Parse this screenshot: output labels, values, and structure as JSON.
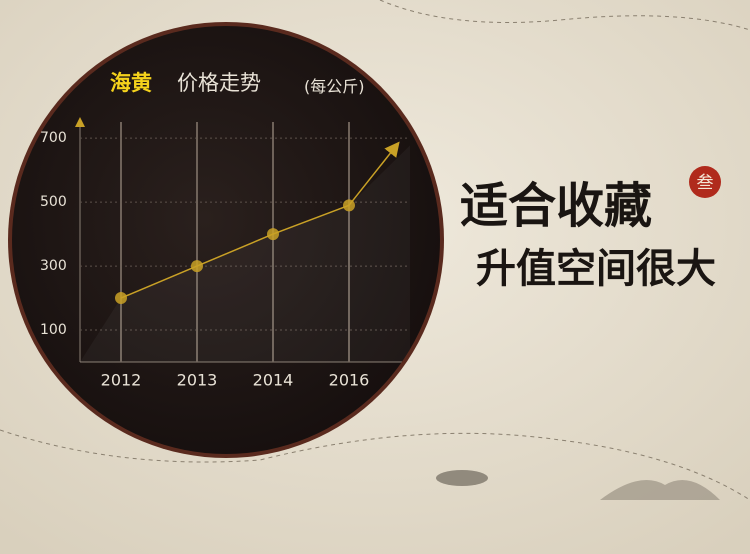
{
  "chart_data": {
    "type": "line",
    "title_highlight": "海黄",
    "title": "价格走势",
    "unit": "(每公斤)",
    "categories": [
      "2012",
      "2013",
      "2014",
      "2016"
    ],
    "values": [
      200,
      300,
      400,
      490
    ],
    "color": "#c9a126",
    "ylim": [
      0,
      760
    ],
    "yticks": [
      100,
      300,
      500,
      700
    ],
    "grid": true
  },
  "slogan": {
    "line1": "适合收藏",
    "line2": "升值空间很大",
    "seal": "叁"
  }
}
